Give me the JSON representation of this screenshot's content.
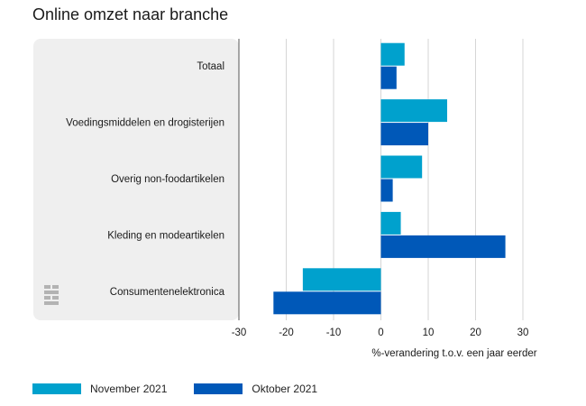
{
  "chart_data": {
    "type": "bar",
    "orientation": "horizontal",
    "title": "Online omzet naar branche",
    "xlabel": "%-verandering t.o.v. een jaar eerder",
    "ylabel": "",
    "xlim": [
      -30,
      30
    ],
    "xticks": [
      "-30",
      "-20",
      "-10",
      "0",
      "10",
      "20",
      "30"
    ],
    "grid": true,
    "legend_position": "bottom-left",
    "categories": [
      "Totaal",
      "Voedingsmiddelen en drogisterijen",
      "Overig non-foodartikelen",
      "Kleding en modeartikelen",
      "Consumentenelektronica"
    ],
    "series": [
      {
        "name": "November 2021",
        "color": "#00a1cd",
        "values": [
          5.0,
          14.0,
          8.7,
          4.2,
          -16.5
        ]
      },
      {
        "name": "Oktober 2021",
        "color": "#0058b8",
        "values": [
          3.3,
          10.0,
          2.5,
          26.3,
          -22.7
        ]
      }
    ]
  }
}
